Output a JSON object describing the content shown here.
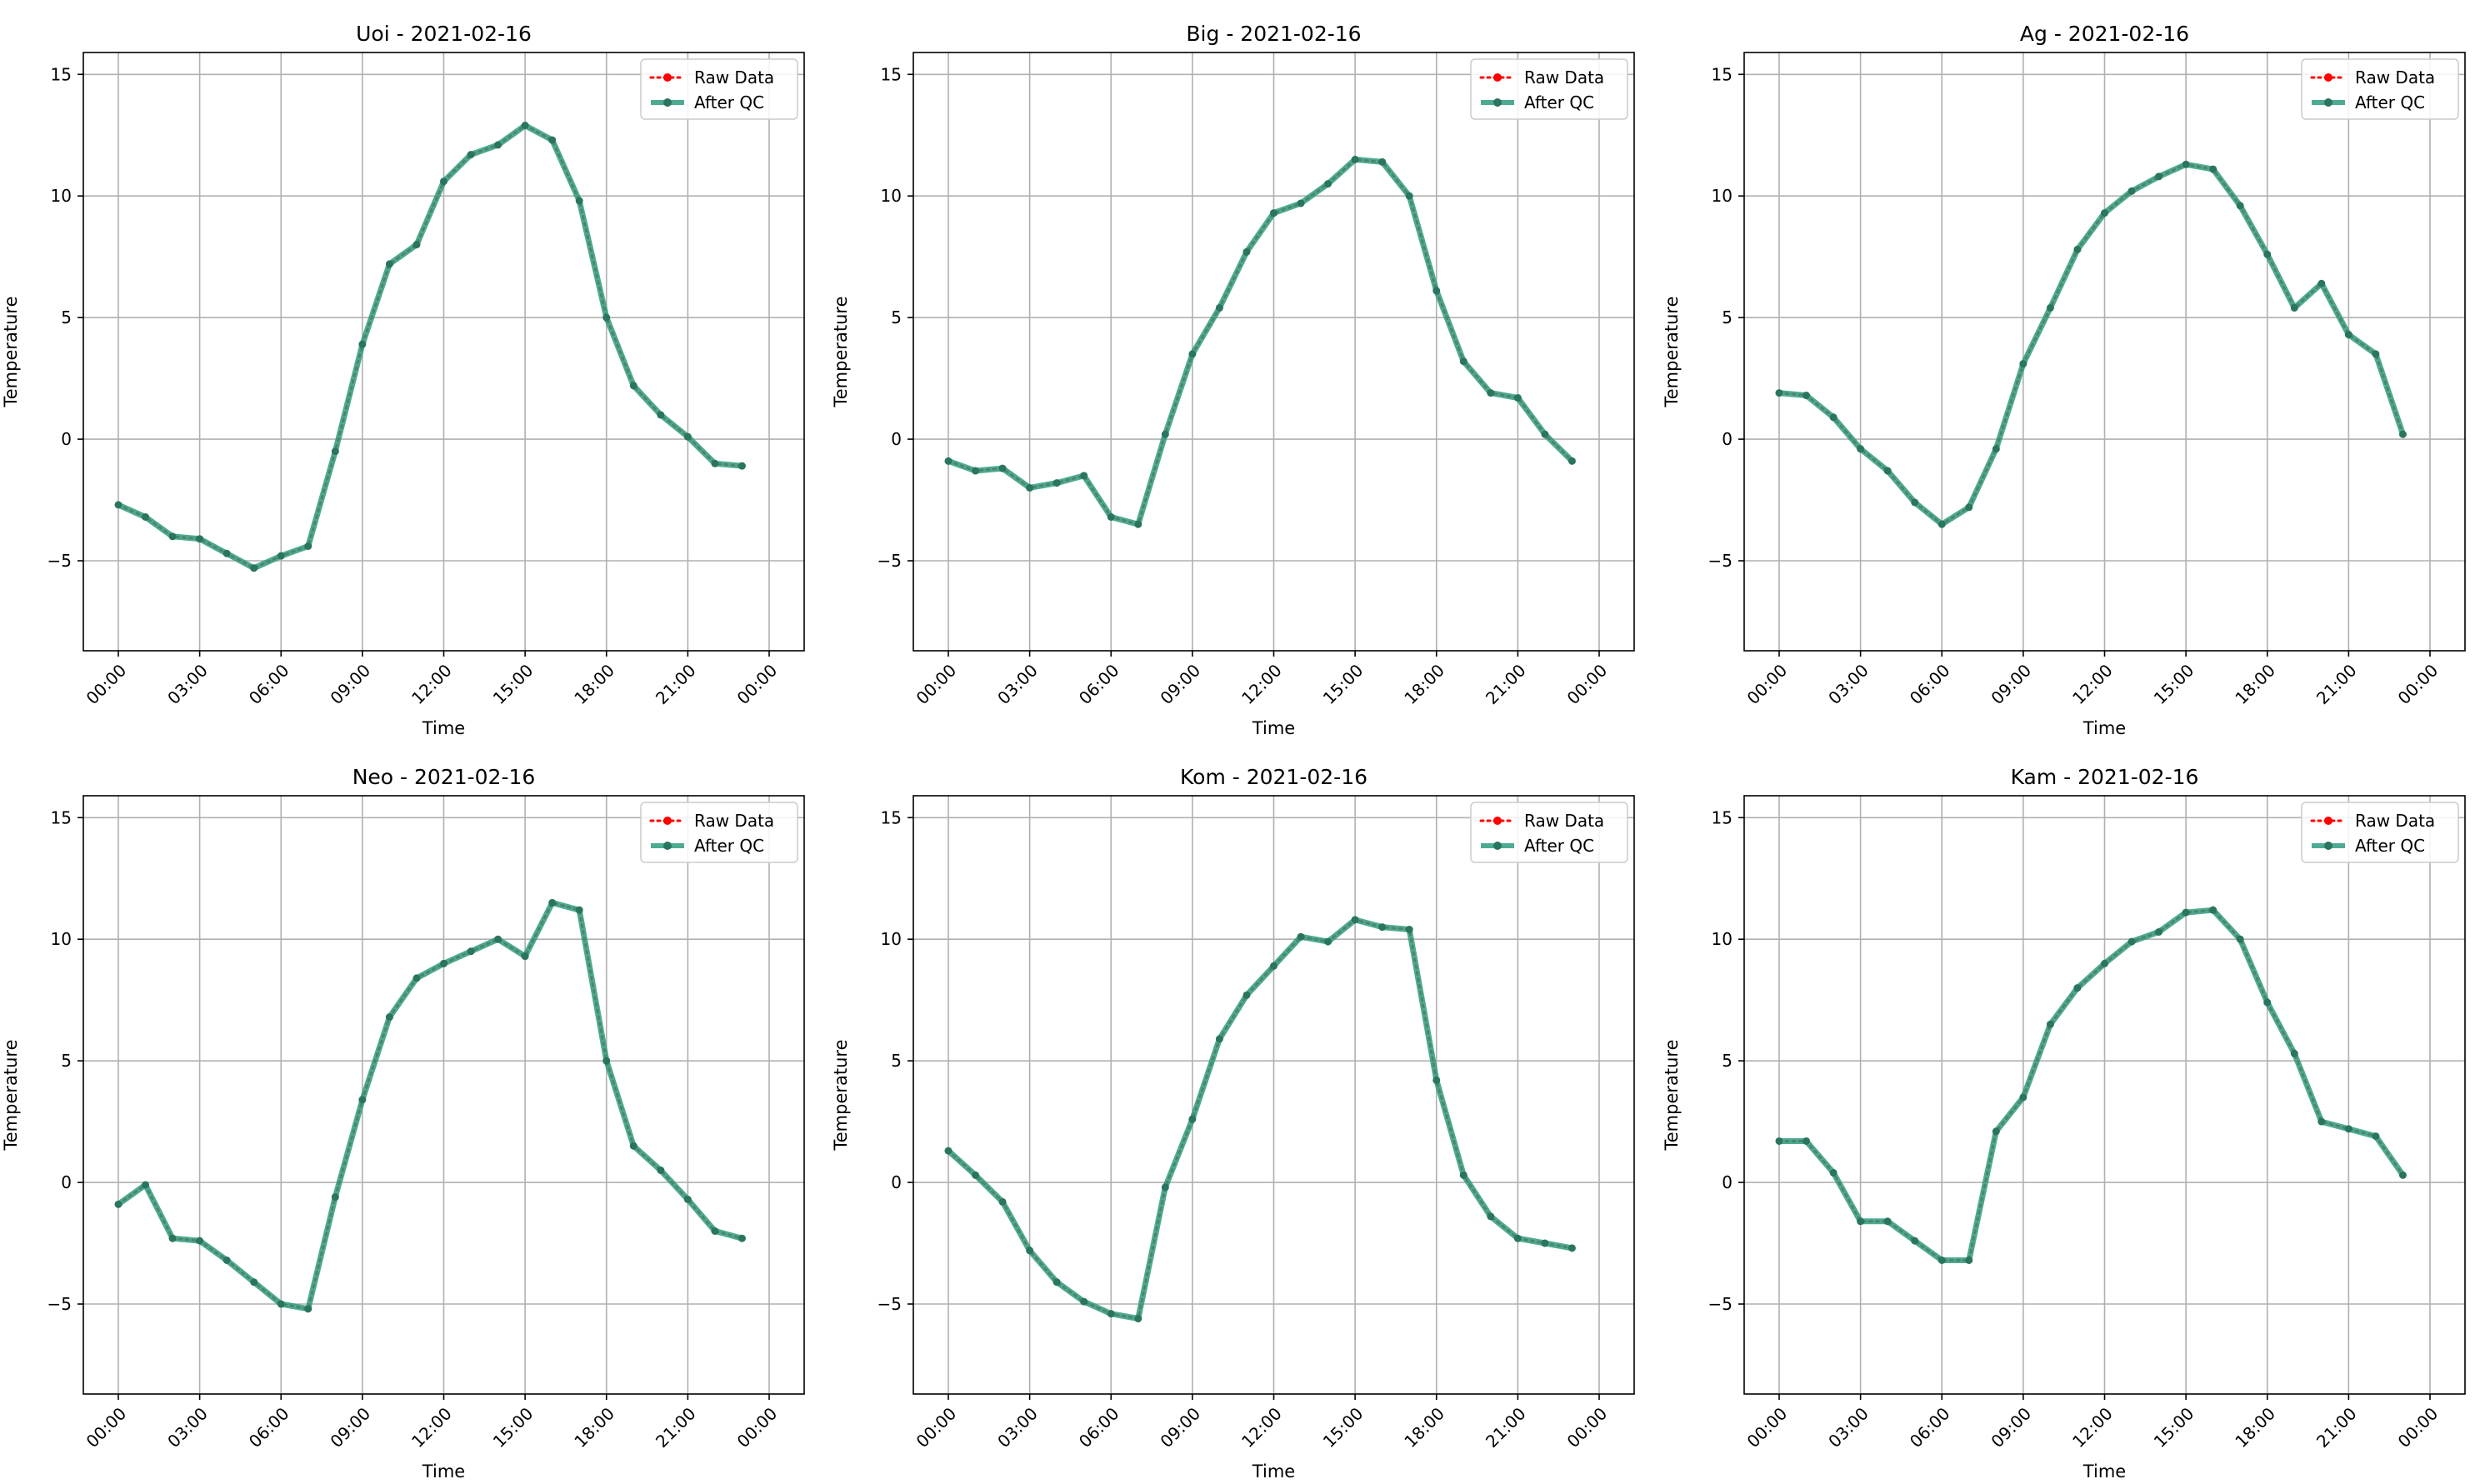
{
  "colors": {
    "raw": "#ff0000",
    "qc": "#2e9c7f",
    "grid": "#b0b0b0"
  },
  "legend": {
    "raw_label": "Raw Data",
    "qc_label": "After QC",
    "placement": "upper right"
  },
  "chart_data": [
    {
      "type": "line",
      "title": "Uoi - 2021-02-16",
      "xlabel": "Time",
      "ylabel": "Temperature",
      "x": [
        "00:00",
        "01:00",
        "02:00",
        "03:00",
        "04:00",
        "05:00",
        "06:00",
        "07:00",
        "08:00",
        "09:00",
        "10:00",
        "11:00",
        "12:00",
        "13:00",
        "14:00",
        "15:00",
        "16:00",
        "17:00",
        "18:00",
        "19:00",
        "20:00",
        "21:00",
        "22:00",
        "23:00"
      ],
      "x_ticks": [
        "00:00",
        "03:00",
        "06:00",
        "09:00",
        "12:00",
        "15:00",
        "18:00",
        "21:00",
        "00:00"
      ],
      "y_ticks": [
        -5,
        0,
        5,
        10,
        15
      ],
      "ylim": [
        -8.7,
        15.9
      ],
      "grid": true,
      "series": [
        {
          "name": "Raw Data",
          "values": [
            -2.7,
            -3.2,
            -4.0,
            -4.1,
            -4.7,
            -5.3,
            -4.8,
            -4.4,
            -0.5,
            3.9,
            7.2,
            8.0,
            10.6,
            11.7,
            12.1,
            12.9,
            12.3,
            9.8,
            5.0,
            2.2,
            1.0,
            0.1,
            -1.0,
            -1.1
          ]
        },
        {
          "name": "After QC",
          "values": [
            -2.7,
            -3.2,
            -4.0,
            -4.1,
            -4.7,
            -5.3,
            -4.8,
            -4.4,
            -0.5,
            3.9,
            7.2,
            8.0,
            10.6,
            11.7,
            12.1,
            12.9,
            12.3,
            9.8,
            5.0,
            2.2,
            1.0,
            0.1,
            -1.0,
            -1.1
          ]
        }
      ]
    },
    {
      "type": "line",
      "title": "Big - 2021-02-16",
      "xlabel": "Time",
      "ylabel": "Temperature",
      "x": [
        "00:00",
        "01:00",
        "02:00",
        "03:00",
        "04:00",
        "05:00",
        "06:00",
        "07:00",
        "08:00",
        "09:00",
        "10:00",
        "11:00",
        "12:00",
        "13:00",
        "14:00",
        "15:00",
        "16:00",
        "17:00",
        "18:00",
        "19:00",
        "20:00",
        "21:00",
        "22:00",
        "23:00"
      ],
      "x_ticks": [
        "00:00",
        "03:00",
        "06:00",
        "09:00",
        "12:00",
        "15:00",
        "18:00",
        "21:00",
        "00:00"
      ],
      "y_ticks": [
        -5,
        0,
        5,
        10,
        15
      ],
      "ylim": [
        -8.7,
        15.9
      ],
      "grid": true,
      "series": [
        {
          "name": "Raw Data",
          "values": [
            -0.9,
            -1.3,
            -1.2,
            -2.0,
            -1.8,
            -1.5,
            -3.2,
            -3.5,
            0.2,
            3.5,
            5.4,
            7.7,
            9.3,
            9.7,
            10.5,
            11.5,
            11.4,
            10.0,
            6.1,
            3.2,
            1.9,
            1.7,
            0.2,
            -0.9
          ]
        },
        {
          "name": "After QC",
          "values": [
            -0.9,
            -1.3,
            -1.2,
            -2.0,
            -1.8,
            -1.5,
            -3.2,
            -3.5,
            0.2,
            3.5,
            5.4,
            7.7,
            9.3,
            9.7,
            10.5,
            11.5,
            11.4,
            10.0,
            6.1,
            3.2,
            1.9,
            1.7,
            0.2,
            -0.9
          ]
        }
      ]
    },
    {
      "type": "line",
      "title": "Ag - 2021-02-16",
      "xlabel": "Time",
      "ylabel": "Temperature",
      "x": [
        "00:00",
        "01:00",
        "02:00",
        "03:00",
        "04:00",
        "05:00",
        "06:00",
        "07:00",
        "08:00",
        "09:00",
        "10:00",
        "11:00",
        "12:00",
        "13:00",
        "14:00",
        "15:00",
        "16:00",
        "17:00",
        "18:00",
        "19:00",
        "20:00",
        "21:00",
        "22:00",
        "23:00"
      ],
      "x_ticks": [
        "00:00",
        "03:00",
        "06:00",
        "09:00",
        "12:00",
        "15:00",
        "18:00",
        "21:00",
        "00:00"
      ],
      "y_ticks": [
        -5,
        0,
        5,
        10,
        15
      ],
      "ylim": [
        -8.7,
        15.9
      ],
      "grid": true,
      "series": [
        {
          "name": "Raw Data",
          "values": [
            1.9,
            1.8,
            0.9,
            -0.4,
            -1.3,
            -2.6,
            -3.5,
            -2.8,
            -0.4,
            3.1,
            5.4,
            7.8,
            9.3,
            10.2,
            10.8,
            11.3,
            11.1,
            9.6,
            7.6,
            5.4,
            6.4,
            4.3,
            3.5,
            0.2
          ]
        },
        {
          "name": "After QC",
          "values": [
            1.9,
            1.8,
            0.9,
            -0.4,
            -1.3,
            -2.6,
            -3.5,
            -2.8,
            -0.4,
            3.1,
            5.4,
            7.8,
            9.3,
            10.2,
            10.8,
            11.3,
            11.1,
            9.6,
            7.6,
            5.4,
            6.4,
            4.3,
            3.5,
            0.2
          ]
        }
      ]
    },
    {
      "type": "line",
      "title": "Neo - 2021-02-16",
      "xlabel": "Time",
      "ylabel": "Temperature",
      "x": [
        "00:00",
        "01:00",
        "02:00",
        "03:00",
        "04:00",
        "05:00",
        "06:00",
        "07:00",
        "08:00",
        "09:00",
        "10:00",
        "11:00",
        "12:00",
        "13:00",
        "14:00",
        "15:00",
        "16:00",
        "17:00",
        "18:00",
        "19:00",
        "20:00",
        "21:00",
        "22:00",
        "23:00"
      ],
      "x_ticks": [
        "00:00",
        "03:00",
        "06:00",
        "09:00",
        "12:00",
        "15:00",
        "18:00",
        "21:00",
        "00:00"
      ],
      "y_ticks": [
        -5,
        0,
        5,
        10,
        15
      ],
      "ylim": [
        -8.7,
        15.9
      ],
      "grid": true,
      "series": [
        {
          "name": "Raw Data",
          "values": [
            -0.9,
            -0.1,
            -2.3,
            -2.4,
            -3.2,
            -4.1,
            -5.0,
            -5.2,
            -0.6,
            3.4,
            6.8,
            8.4,
            9.0,
            9.5,
            10.0,
            9.3,
            11.5,
            11.2,
            5.0,
            1.5,
            0.5,
            -0.7,
            -2.0,
            -2.3
          ]
        },
        {
          "name": "After QC",
          "values": [
            -0.9,
            -0.1,
            -2.3,
            -2.4,
            -3.2,
            -4.1,
            -5.0,
            -5.2,
            -0.6,
            3.4,
            6.8,
            8.4,
            9.0,
            9.5,
            10.0,
            9.3,
            11.5,
            11.2,
            5.0,
            1.5,
            0.5,
            -0.7,
            -2.0,
            -2.3
          ]
        }
      ]
    },
    {
      "type": "line",
      "title": "Kom - 2021-02-16",
      "xlabel": "Time",
      "ylabel": "Temperature",
      "x": [
        "00:00",
        "01:00",
        "02:00",
        "03:00",
        "04:00",
        "05:00",
        "06:00",
        "07:00",
        "08:00",
        "09:00",
        "10:00",
        "11:00",
        "12:00",
        "13:00",
        "14:00",
        "15:00",
        "16:00",
        "17:00",
        "18:00",
        "19:00",
        "20:00",
        "21:00",
        "22:00",
        "23:00"
      ],
      "x_ticks": [
        "00:00",
        "03:00",
        "06:00",
        "09:00",
        "12:00",
        "15:00",
        "18:00",
        "21:00",
        "00:00"
      ],
      "y_ticks": [
        -5,
        0,
        5,
        10,
        15
      ],
      "ylim": [
        -8.7,
        15.9
      ],
      "grid": true,
      "series": [
        {
          "name": "Raw Data",
          "values": [
            1.3,
            0.3,
            -0.8,
            -2.8,
            -4.1,
            -4.9,
            -5.4,
            -5.6,
            -0.2,
            2.6,
            5.9,
            7.7,
            8.9,
            10.1,
            9.9,
            10.8,
            10.5,
            10.4,
            4.2,
            0.3,
            -1.4,
            -2.3,
            -2.5,
            -2.7
          ]
        },
        {
          "name": "After QC",
          "values": [
            1.3,
            0.3,
            -0.8,
            -2.8,
            -4.1,
            -4.9,
            -5.4,
            -5.6,
            -0.2,
            2.6,
            5.9,
            7.7,
            8.9,
            10.1,
            9.9,
            10.8,
            10.5,
            10.4,
            4.2,
            0.3,
            -1.4,
            -2.3,
            -2.5,
            -2.7
          ]
        }
      ]
    },
    {
      "type": "line",
      "title": "Kam - 2021-02-16",
      "xlabel": "Time",
      "ylabel": "Temperature",
      "x": [
        "00:00",
        "01:00",
        "02:00",
        "03:00",
        "04:00",
        "05:00",
        "06:00",
        "07:00",
        "08:00",
        "09:00",
        "10:00",
        "11:00",
        "12:00",
        "13:00",
        "14:00",
        "15:00",
        "16:00",
        "17:00",
        "18:00",
        "19:00",
        "20:00",
        "21:00",
        "22:00",
        "23:00"
      ],
      "x_ticks": [
        "00:00",
        "03:00",
        "06:00",
        "09:00",
        "12:00",
        "15:00",
        "18:00",
        "21:00",
        "00:00"
      ],
      "y_ticks": [
        -5,
        0,
        5,
        10,
        15
      ],
      "ylim": [
        -8.7,
        15.9
      ],
      "grid": true,
      "series": [
        {
          "name": "Raw Data",
          "values": [
            1.7,
            1.7,
            0.4,
            -1.6,
            -1.6,
            -2.4,
            -3.2,
            -3.2,
            2.1,
            3.5,
            6.5,
            8.0,
            9.0,
            9.9,
            10.3,
            11.1,
            11.2,
            10.0,
            7.4,
            5.3,
            2.5,
            2.2,
            1.9,
            0.3
          ]
        },
        {
          "name": "After QC",
          "values": [
            1.7,
            1.7,
            0.4,
            -1.6,
            -1.6,
            -2.4,
            -3.2,
            -3.2,
            2.1,
            3.5,
            6.5,
            8.0,
            9.0,
            9.9,
            10.3,
            11.1,
            11.2,
            10.0,
            7.4,
            5.3,
            2.5,
            2.2,
            1.9,
            0.3
          ]
        }
      ]
    }
  ]
}
